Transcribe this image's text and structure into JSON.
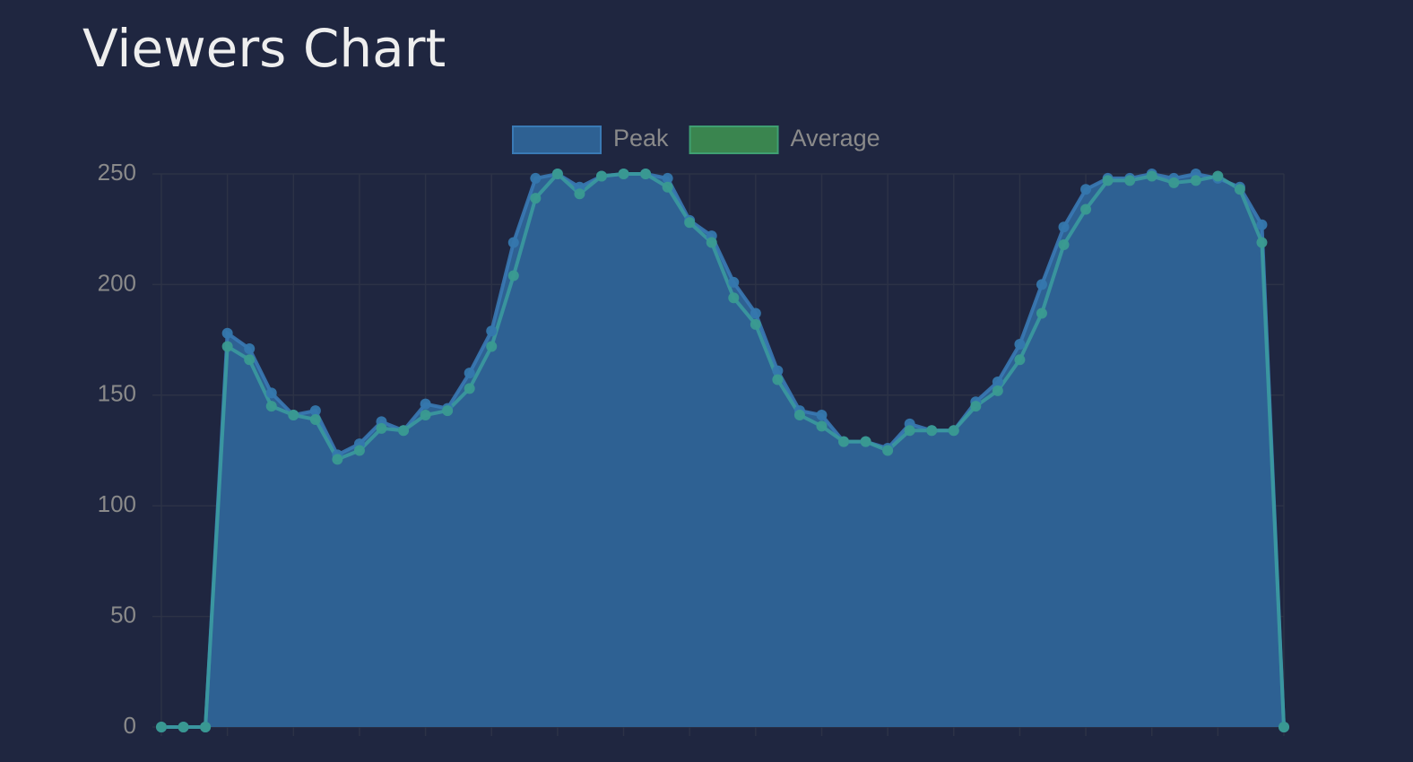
{
  "title": "Viewers Chart",
  "chart_data": {
    "type": "area",
    "categories": [
      null,
      null,
      null,
      null,
      null,
      null,
      null,
      null,
      null,
      null,
      null,
      null,
      null,
      null,
      null,
      null,
      null,
      null,
      null,
      null,
      null,
      null,
      null,
      null,
      null,
      null,
      null,
      null,
      null,
      null,
      null,
      null,
      null,
      null,
      null,
      null,
      null,
      null,
      null,
      null,
      null,
      null,
      null,
      null,
      null,
      null,
      null,
      null,
      null,
      null,
      null,
      null
    ],
    "series": [
      {
        "name": "Peak",
        "color": "#3a7ab5",
        "values": [
          0,
          0,
          0,
          178,
          171,
          151,
          141,
          143,
          123,
          128,
          138,
          134,
          146,
          144,
          160,
          179,
          219,
          248,
          250,
          244,
          249,
          250,
          250,
          248,
          229,
          222,
          201,
          187,
          161,
          143,
          141,
          129,
          129,
          126,
          137,
          134,
          134,
          147,
          156,
          173,
          200,
          226,
          243,
          248,
          248,
          250,
          248,
          250,
          248,
          244,
          227,
          0
        ]
      },
      {
        "name": "Average",
        "color": "#3f9f72",
        "values": [
          0,
          0,
          0,
          172,
          166,
          145,
          141,
          139,
          121,
          125,
          135,
          134,
          141,
          143,
          153,
          172,
          204,
          239,
          250,
          241,
          249,
          250,
          250,
          244,
          228,
          219,
          194,
          182,
          157,
          141,
          136,
          129,
          129,
          125,
          134,
          134,
          134,
          145,
          152,
          166,
          187,
          218,
          234,
          247,
          247,
          249,
          246,
          247,
          249,
          243,
          219,
          0
        ]
      }
    ],
    "ylim": [
      0,
      250
    ],
    "yticks": [
      0,
      50,
      100,
      150,
      200,
      250
    ],
    "grid": true
  }
}
